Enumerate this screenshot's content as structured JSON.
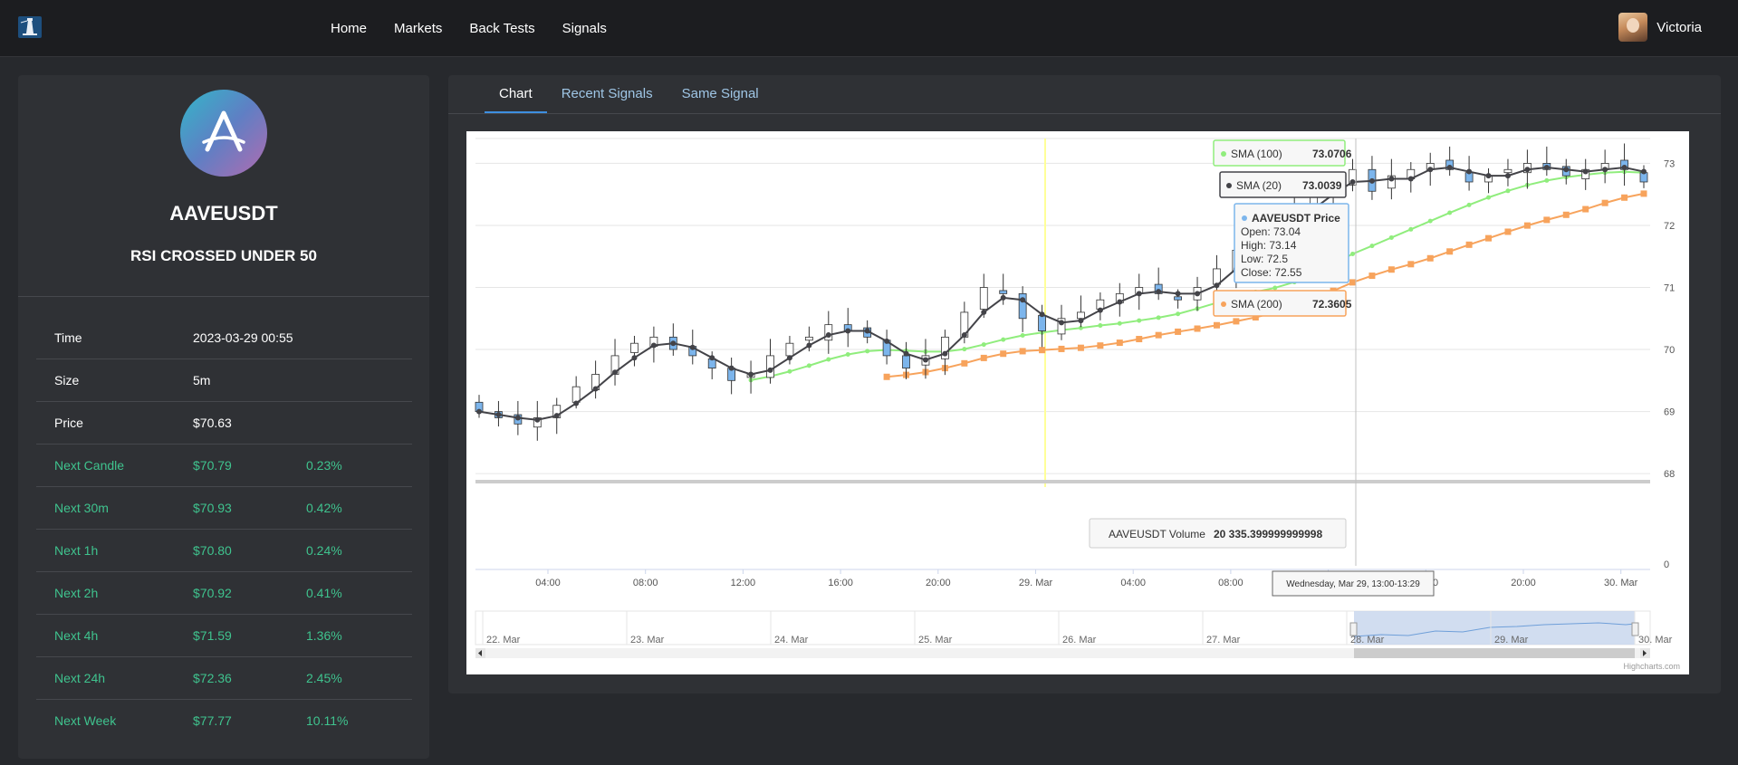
{
  "nav": {
    "items": [
      "Home",
      "Markets",
      "Back Tests",
      "Signals"
    ]
  },
  "user": {
    "name": "Victoria"
  },
  "asset": {
    "symbol": "AAVEUSDT",
    "signal": "RSI CROSSED UNDER 50"
  },
  "details": [
    {
      "label": "Time",
      "value": "2023-03-29 00:55",
      "pct": ""
    },
    {
      "label": "Size",
      "value": "5m",
      "pct": ""
    },
    {
      "label": "Price",
      "value": "$70.63",
      "pct": ""
    },
    {
      "label": "Next Candle",
      "value": "$70.79",
      "pct": "0.23%"
    },
    {
      "label": "Next 30m",
      "value": "$70.93",
      "pct": "0.42%"
    },
    {
      "label": "Next 1h",
      "value": "$70.80",
      "pct": "0.24%"
    },
    {
      "label": "Next 2h",
      "value": "$70.92",
      "pct": "0.41%"
    },
    {
      "label": "Next 4h",
      "value": "$71.59",
      "pct": "1.36%"
    },
    {
      "label": "Next 24h",
      "value": "$72.36",
      "pct": "2.45%"
    },
    {
      "label": "Next Week",
      "value": "$77.77",
      "pct": "10.11%"
    }
  ],
  "tabs": [
    "Chart",
    "Recent Signals",
    "Same Signal"
  ],
  "colors": {
    "sma100": "#90ed7d",
    "sma20": "#434348",
    "sma200": "#f7a35c",
    "down_candle": "#7cb5ec",
    "signal_line": "#ffff99"
  },
  "icons": {
    "logo": "lighthouse-icon"
  },
  "chart_data": {
    "type": "candlestick",
    "series": [
      {
        "name": "AAVEUSDT Price"
      },
      {
        "name": "SMA (20)"
      },
      {
        "name": "SMA (100)"
      },
      {
        "name": "SMA (200)"
      },
      {
        "name": "AAVEUSDT Volume"
      }
    ],
    "price_axis": {
      "ticks": [
        68,
        69,
        70,
        71,
        72,
        73
      ],
      "range": [
        67.9,
        73.4
      ]
    },
    "volume_axis": {
      "ticks": [
        0
      ]
    },
    "x_ticks": [
      "04:00",
      "08:00",
      "12:00",
      "16:00",
      "20:00",
      "29. Mar",
      "04:00",
      "08:00",
      "12:00",
      "16:00",
      "20:00",
      "30. Mar"
    ],
    "navigator_ticks": [
      "22. Mar",
      "23. Mar",
      "24. Mar",
      "25. Mar",
      "26. Mar",
      "27. Mar",
      "28. Mar",
      "29. Mar",
      "30. Mar"
    ],
    "close_series": [
      69.0,
      68.9,
      68.8,
      68.9,
      69.1,
      69.4,
      69.6,
      69.9,
      70.1,
      70.2,
      70.0,
      69.9,
      69.7,
      69.5,
      69.6,
      69.9,
      70.1,
      70.2,
      70.4,
      70.3,
      70.2,
      69.9,
      69.7,
      69.9,
      70.2,
      70.6,
      71.0,
      70.9,
      70.5,
      70.3,
      70.5,
      70.6,
      70.8,
      70.9,
      71.0,
      70.9,
      70.8,
      71.0,
      71.3,
      71.6,
      71.8,
      72.0,
      72.3,
      72.5,
      72.7,
      72.9,
      72.55,
      72.8,
      72.9,
      73.0,
      72.9,
      72.7,
      72.8,
      72.9,
      73.0,
      72.9,
      72.8,
      72.9,
      73.0,
      72.9,
      72.7
    ],
    "tooltip": {
      "time": "Wednesday, Mar 29, 13:00-13:29",
      "sma100": "73.0706",
      "sma20": "73.0039",
      "sma200": "72.3605",
      "price_open": "73.04",
      "price_high": "73.14",
      "price_low": "72.5",
      "price_close": "72.55",
      "volume": "20 335.399999999998"
    },
    "credits": "Highcharts.com",
    "legend": "none",
    "grid": true
  }
}
